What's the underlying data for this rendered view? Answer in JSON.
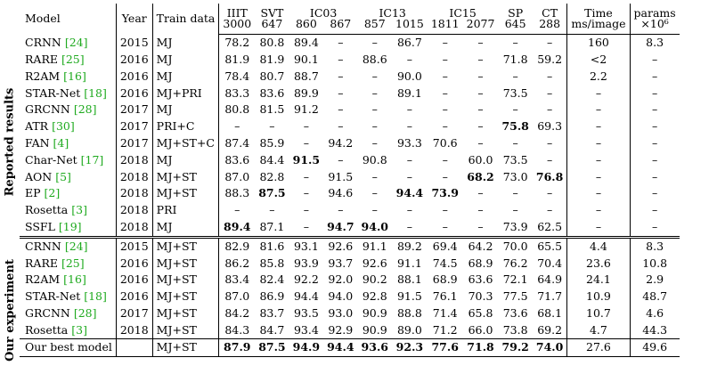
{
  "headers": {
    "model": "Model",
    "year": "Year",
    "train": "Train data",
    "iiit": "IIIT",
    "svt": "SVT",
    "ic03": "IC03",
    "ic13": "IC13",
    "ic15": "IC15",
    "sp": "SP",
    "ct": "CT",
    "time": "Time",
    "params": "params",
    "sub": [
      "3000",
      "647",
      "860",
      "867",
      "857",
      "1015",
      "1811",
      "2077",
      "645",
      "288"
    ],
    "time_unit": "ms/image",
    "params_unit": "×10⁶"
  },
  "side_labels": {
    "reported": "Reported results",
    "ours": "Our experiment"
  },
  "reported": [
    {
      "name": "CRNN ",
      "cite": "[24]",
      "year": "2015",
      "train": "MJ",
      "vals": [
        "78.2",
        "80.8",
        "89.4",
        "–",
        "–",
        "86.7",
        "–",
        "–",
        "–",
        "–",
        "160",
        "8.3"
      ]
    },
    {
      "name": "RARE ",
      "cite": "[25]",
      "year": "2016",
      "train": "MJ",
      "vals": [
        "81.9",
        "81.9",
        "90.1",
        "–",
        "88.6",
        "–",
        "–",
        "–",
        "71.8",
        "59.2",
        "<2",
        "–"
      ]
    },
    {
      "name": "R2AM ",
      "cite": "[16]",
      "year": "2016",
      "train": "MJ",
      "vals": [
        "78.4",
        "80.7",
        "88.7",
        "–",
        "–",
        "90.0",
        "–",
        "–",
        "–",
        "–",
        "2.2",
        "–"
      ]
    },
    {
      "name": "STAR-Net ",
      "cite": "[18]",
      "year": "2016",
      "train": "MJ+PRI",
      "vals": [
        "83.3",
        "83.6",
        "89.9",
        "–",
        "–",
        "89.1",
        "–",
        "–",
        "73.5",
        "–",
        "–",
        "–"
      ]
    },
    {
      "name": "GRCNN ",
      "cite": "[28]",
      "year": "2017",
      "train": "MJ",
      "vals": [
        "80.8",
        "81.5",
        "91.2",
        "–",
        "–",
        "–",
        "–",
        "–",
        "–",
        "–",
        "–",
        "–"
      ]
    },
    {
      "name": "ATR ",
      "cite": "[30]",
      "year": "2017",
      "train": "PRI+C",
      "vals": [
        "–",
        "–",
        "–",
        "–",
        "–",
        "–",
        "–",
        "–",
        "75.8",
        "69.3",
        "–",
        "–"
      ]
    },
    {
      "name": "FAN ",
      "cite": "[4]",
      "year": "2017",
      "train": "MJ+ST+C",
      "vals": [
        "87.4",
        "85.9",
        "–",
        "94.2",
        "–",
        "93.3",
        "70.6",
        "–",
        "–",
        "–",
        "–",
        "–"
      ]
    },
    {
      "name": "Char-Net ",
      "cite": "[17]",
      "year": "2018",
      "train": "MJ",
      "vals": [
        "83.6",
        "84.4",
        "91.5",
        "–",
        "90.8",
        "–",
        "–",
        "60.0",
        "73.5",
        "–",
        "–",
        "–"
      ]
    },
    {
      "name": "AON ",
      "cite": "[5]",
      "year": "2018",
      "train": "MJ+ST",
      "vals": [
        "87.0",
        "82.8",
        "–",
        "91.5",
        "–",
        "–",
        "–",
        "68.2",
        "73.0",
        "76.8",
        "–",
        "–"
      ]
    },
    {
      "name": "EP ",
      "cite": "[2]",
      "year": "2018",
      "train": "MJ+ST",
      "vals": [
        "88.3",
        "87.5",
        "–",
        "94.6",
        "–",
        "94.4",
        "73.9",
        "–",
        "–",
        "–",
        "–",
        "–"
      ]
    },
    {
      "name": "Rosetta ",
      "cite": "[3]",
      "year": "2018",
      "train": "PRI",
      "vals": [
        "–",
        "–",
        "–",
        "–",
        "–",
        "–",
        "–",
        "–",
        "–",
        "–",
        "–",
        "–"
      ]
    },
    {
      "name": "SSFL ",
      "cite": "[19]",
      "year": "2018",
      "train": "MJ",
      "vals": [
        "89.4",
        "87.1",
        "–",
        "94.7",
        "94.0",
        "–",
        "–",
        "–",
        "73.9",
        "62.5",
        "–",
        "–"
      ]
    }
  ],
  "ours": [
    {
      "name": "CRNN ",
      "cite": "[24]",
      "year": "2015",
      "train": "MJ+ST",
      "vals": [
        "82.9",
        "81.6",
        "93.1",
        "92.6",
        "91.1",
        "89.2",
        "69.4",
        "64.2",
        "70.0",
        "65.5",
        "4.4",
        "8.3"
      ]
    },
    {
      "name": "RARE ",
      "cite": "[25]",
      "year": "2016",
      "train": "MJ+ST",
      "vals": [
        "86.2",
        "85.8",
        "93.9",
        "93.7",
        "92.6",
        "91.1",
        "74.5",
        "68.9",
        "76.2",
        "70.4",
        "23.6",
        "10.8"
      ]
    },
    {
      "name": "R2AM ",
      "cite": "[16]",
      "year": "2016",
      "train": "MJ+ST",
      "vals": [
        "83.4",
        "82.4",
        "92.2",
        "92.0",
        "90.2",
        "88.1",
        "68.9",
        "63.6",
        "72.1",
        "64.9",
        "24.1",
        "2.9"
      ]
    },
    {
      "name": "STAR-Net ",
      "cite": "[18]",
      "year": "2016",
      "train": "MJ+ST",
      "vals": [
        "87.0",
        "86.9",
        "94.4",
        "94.0",
        "92.8",
        "91.5",
        "76.1",
        "70.3",
        "77.5",
        "71.7",
        "10.9",
        "48.7"
      ]
    },
    {
      "name": "GRCNN ",
      "cite": "[28]",
      "year": "2017",
      "train": "MJ+ST",
      "vals": [
        "84.2",
        "83.7",
        "93.5",
        "93.0",
        "90.9",
        "88.8",
        "71.4",
        "65.8",
        "73.6",
        "68.1",
        "10.7",
        "4.6"
      ]
    },
    {
      "name": "Rosetta ",
      "cite": "[3]",
      "year": "2018",
      "train": "MJ+ST",
      "vals": [
        "84.3",
        "84.7",
        "93.4",
        "92.9",
        "90.9",
        "89.0",
        "71.2",
        "66.0",
        "73.8",
        "69.2",
        "4.7",
        "44.3"
      ]
    }
  ],
  "best": {
    "name": "Our best model",
    "year": "",
    "train": "MJ+ST",
    "vals": [
      "87.9",
      "87.5",
      "94.9",
      "94.4",
      "93.6",
      "92.3",
      "77.6",
      "71.8",
      "79.2",
      "74.0",
      "27.6",
      "49.6"
    ]
  },
  "bold_cells": {
    "reported": {
      "5": [
        8
      ],
      "7": [
        2
      ],
      "8": [
        7,
        9
      ],
      "9": [
        1,
        5,
        6
      ],
      "11": [
        0,
        3,
        4
      ]
    },
    "best": [
      0,
      1,
      2,
      3,
      4,
      5,
      6,
      7,
      8,
      9
    ]
  }
}
